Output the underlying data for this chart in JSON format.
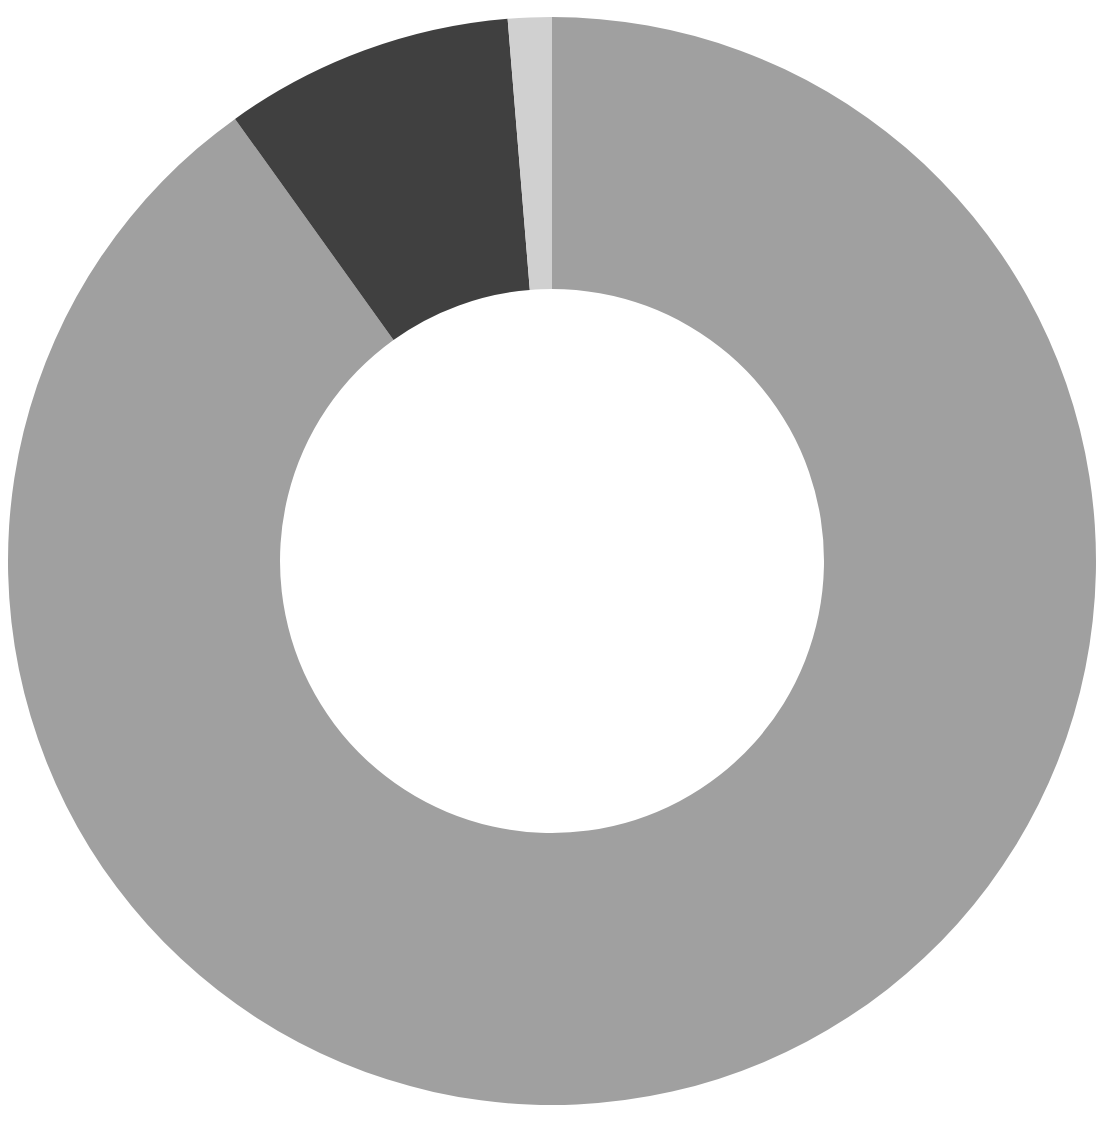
{
  "chart_data": {
    "type": "donut",
    "categories": [
      null,
      null,
      null
    ],
    "values": [
      90.1,
      8.6,
      1.3
    ],
    "colors": [
      "#a0a0a0",
      "#404040",
      "#d0d0d0"
    ],
    "legend": false
  }
}
